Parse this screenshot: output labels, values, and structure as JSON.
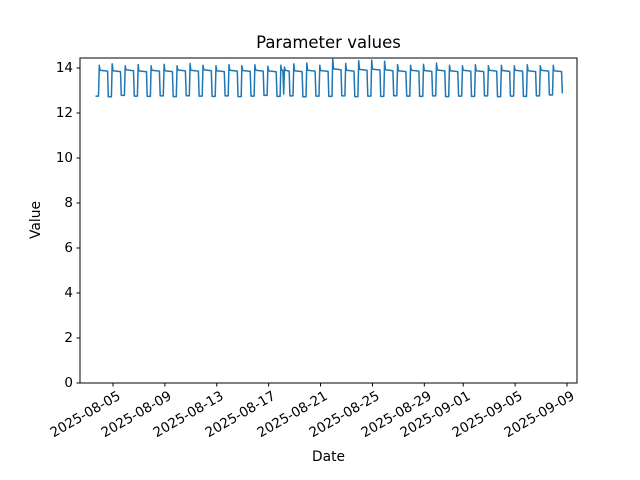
{
  "figure": {
    "title": "Parameter values"
  },
  "chart_data": {
    "type": "line",
    "title": "Parameter values",
    "xlabel": "Date",
    "ylabel": "Value",
    "legend": "none",
    "grid": false,
    "line_color": "#1f77b4",
    "axis_color": "#000000",
    "background_color": "#ffffff",
    "y_axis": {
      "ticks": [
        0,
        2,
        4,
        6,
        8,
        10,
        12,
        14
      ],
      "lim": [
        0,
        14.44
      ]
    },
    "x_axis": {
      "epoch": "2025-08-05",
      "tick_dates": [
        "2025-08-05",
        "2025-08-09",
        "2025-08-13",
        "2025-08-17",
        "2025-08-21",
        "2025-08-25",
        "2025-08-29",
        "2025-09-01",
        "2025-09-05",
        "2025-09-09"
      ],
      "range_days": [
        -1.3,
        34.7
      ]
    },
    "series": {
      "name": "Parameter values",
      "description": "Daily square-wave oscillation: short trough ~12.7-12.8, leading spike ~14.1-14.4, plateau ~13.9",
      "start_day": -1.3,
      "profile": {
        "flat_end": 0.18,
        "rise_peak": 0.24,
        "settle": 0.3,
        "plateau_end": 0.88,
        "drop": 0.94
      },
      "cycles": [
        {
          "low": 12.75,
          "peak": 14.12,
          "high": 13.9
        },
        {
          "low": 12.72,
          "peak": 14.18,
          "high": 13.88
        },
        {
          "low": 12.78,
          "peak": 14.1,
          "high": 13.92
        },
        {
          "low": 12.75,
          "peak": 14.15,
          "high": 13.87
        },
        {
          "low": 12.74,
          "peak": 14.1,
          "high": 13.9
        },
        {
          "low": 12.76,
          "peak": 14.16,
          "high": 13.88
        },
        {
          "low": 12.73,
          "peak": 14.1,
          "high": 13.91
        },
        {
          "low": 12.77,
          "peak": 14.2,
          "high": 13.9
        },
        {
          "low": 12.75,
          "peak": 14.12,
          "high": 13.92
        },
        {
          "low": 12.74,
          "peak": 14.1,
          "high": 13.88
        },
        {
          "low": 12.76,
          "peak": 14.15,
          "high": 13.9
        },
        {
          "low": 12.73,
          "peak": 14.1,
          "high": 13.89
        },
        {
          "low": 12.75,
          "peak": 14.14,
          "high": 13.9
        },
        {
          "low": 12.78,
          "peak": 14.08,
          "high": 13.87
        },
        {
          "low": 12.74,
          "peak": 14.12,
          "high": 13.9,
          "double": true
        },
        {
          "low": 12.76,
          "peak": 14.18,
          "high": 13.88
        },
        {
          "low": 12.72,
          "peak": 14.22,
          "high": 13.9
        },
        {
          "low": 12.75,
          "peak": 14.12,
          "high": 13.89
        },
        {
          "low": 12.74,
          "peak": 14.42,
          "high": 13.96
        },
        {
          "low": 12.76,
          "peak": 14.2,
          "high": 13.9
        },
        {
          "low": 12.73,
          "peak": 14.32,
          "high": 13.94
        },
        {
          "low": 12.75,
          "peak": 14.35,
          "high": 13.95
        },
        {
          "low": 12.74,
          "peak": 14.3,
          "high": 13.92
        },
        {
          "low": 12.77,
          "peak": 14.15,
          "high": 13.88
        },
        {
          "low": 12.75,
          "peak": 14.12,
          "high": 13.9
        },
        {
          "low": 12.74,
          "peak": 14.16,
          "high": 13.89
        },
        {
          "low": 12.76,
          "peak": 14.22,
          "high": 13.91
        },
        {
          "low": 12.73,
          "peak": 14.12,
          "high": 13.88
        },
        {
          "low": 12.75,
          "peak": 14.1,
          "high": 13.9
        },
        {
          "low": 12.74,
          "peak": 14.14,
          "high": 13.88
        },
        {
          "low": 12.76,
          "peak": 14.1,
          "high": 13.9
        },
        {
          "low": 12.73,
          "peak": 14.12,
          "high": 13.89
        },
        {
          "low": 12.75,
          "peak": 14.1,
          "high": 13.9
        },
        {
          "low": 12.74,
          "peak": 14.14,
          "high": 13.88
        },
        {
          "low": 12.76,
          "peak": 14.1,
          "high": 13.9
        },
        {
          "low": 12.8,
          "peak": 14.12,
          "high": 13.88
        }
      ]
    }
  }
}
